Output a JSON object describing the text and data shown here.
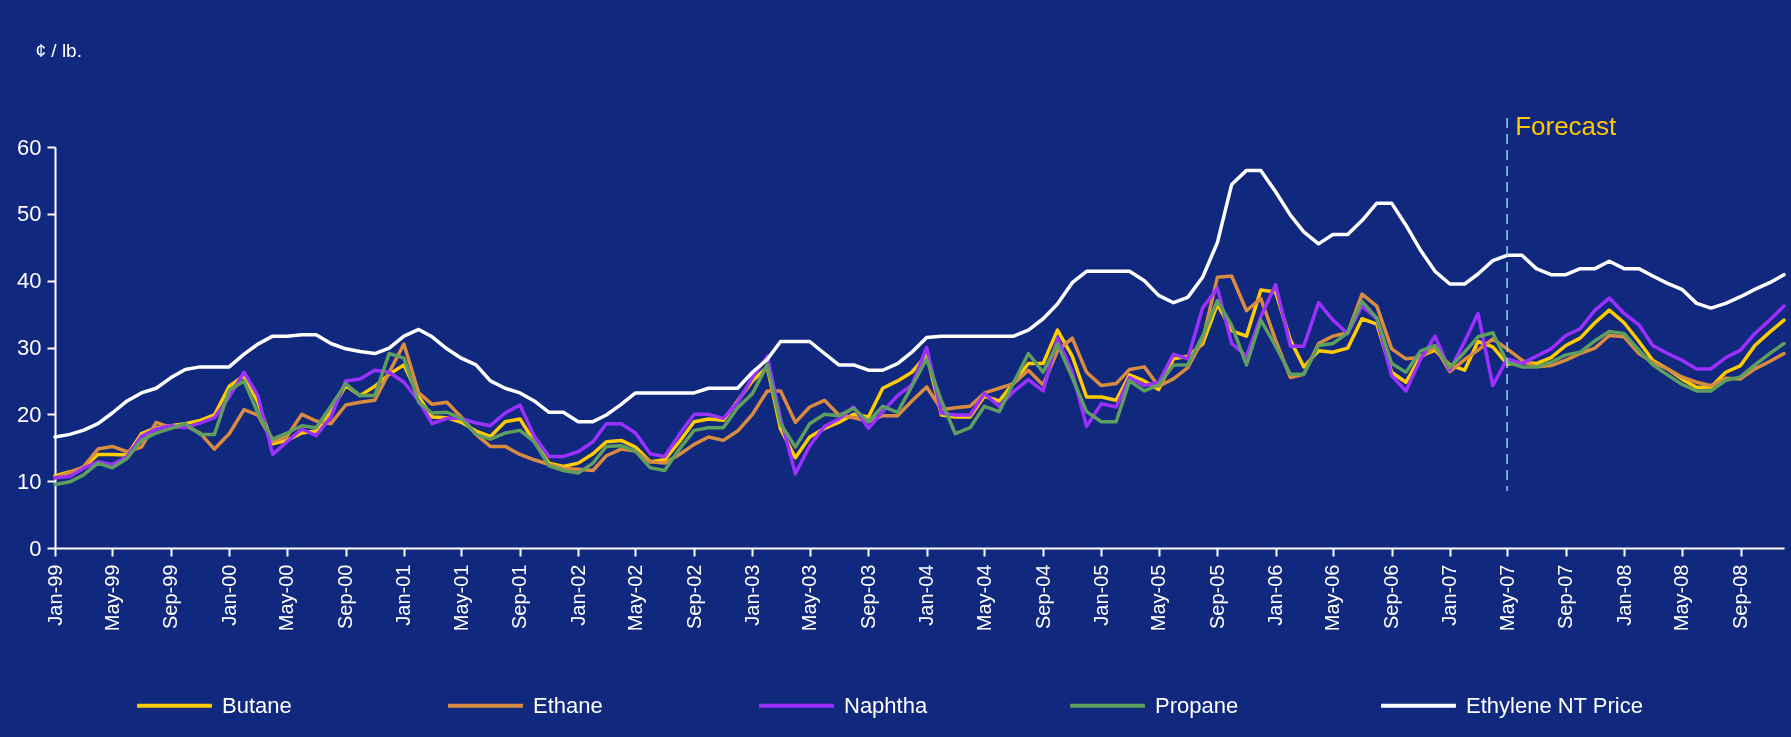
{
  "chart_data": {
    "type": "line",
    "ylabel": "¢ / lb.",
    "x": [
      "1999-01",
      "1999-02",
      "1999-03",
      "1999-04",
      "1999-05",
      "1999-06",
      "1999-07",
      "1999-08",
      "1999-09",
      "1999-10",
      "1999-11",
      "1999-12",
      "2000-01",
      "2000-02",
      "2000-03",
      "2000-04",
      "2000-05",
      "2000-06",
      "2000-07",
      "2000-08",
      "2000-09",
      "2000-10",
      "2000-11",
      "2000-12",
      "2001-01",
      "2001-02",
      "2001-03",
      "2001-04",
      "2001-05",
      "2001-06",
      "2001-07",
      "2001-08",
      "2001-09",
      "2001-10",
      "2001-11",
      "2001-12",
      "2002-01",
      "2002-02",
      "2002-03",
      "2002-04",
      "2002-05",
      "2002-06",
      "2002-07",
      "2002-08",
      "2002-09",
      "2002-10",
      "2002-11",
      "2002-12",
      "2003-01",
      "2003-02",
      "2003-03",
      "2003-04",
      "2003-05",
      "2003-06",
      "2003-07",
      "2003-08",
      "2003-09",
      "2003-10",
      "2003-11",
      "2003-12",
      "2004-01",
      "2004-02",
      "2004-03",
      "2004-04",
      "2004-05",
      "2004-06",
      "2004-07",
      "2004-08",
      "2004-09",
      "2004-10",
      "2004-11",
      "2004-12",
      "2005-01",
      "2005-02",
      "2005-03",
      "2005-04",
      "2005-05",
      "2005-06",
      "2005-07",
      "2005-08",
      "2005-09",
      "2005-10",
      "2005-11",
      "2005-12",
      "2006-01",
      "2006-02",
      "2006-03",
      "2006-04",
      "2006-05",
      "2006-06",
      "2006-07",
      "2006-08",
      "2006-09",
      "2006-10",
      "2006-11",
      "2006-12",
      "2007-01",
      "2007-02",
      "2007-03",
      "2007-04",
      "2007-05",
      "2007-06",
      "2007-07",
      "2007-08",
      "2007-09",
      "2007-10",
      "2007-11",
      "2007-12",
      "2008-01",
      "2008-02",
      "2008-03",
      "2008-04",
      "2008-05",
      "2008-06",
      "2008-07",
      "2008-08",
      "2008-09",
      "2008-10",
      "2008-11",
      "2008-12"
    ],
    "series": [
      {
        "name": "Butane",
        "color": "#ffcc00",
        "values": [
          10.8,
          11.4,
          12.0,
          14.0,
          14.0,
          13.9,
          17.1,
          18.0,
          18.3,
          18.6,
          19.1,
          19.9,
          24.2,
          25.8,
          21.8,
          15.6,
          16.1,
          17.2,
          17.5,
          20.4,
          24.3,
          22.8,
          24.2,
          26.0,
          27.4,
          22.6,
          19.6,
          19.5,
          18.8,
          17.5,
          16.7,
          18.9,
          19.3,
          15.9,
          12.7,
          12.2,
          12.7,
          14.1,
          15.9,
          16.1,
          15.1,
          12.9,
          13.2,
          15.9,
          18.9,
          19.3,
          19.1,
          22.0,
          25.0,
          27.1,
          17.8,
          13.5,
          16.6,
          17.9,
          18.8,
          20.0,
          19.6,
          23.9,
          25.0,
          26.3,
          28.9,
          19.9,
          19.6,
          19.6,
          22.7,
          22.0,
          24.7,
          27.6,
          27.6,
          32.6,
          28.7,
          22.6,
          22.6,
          22.1,
          25.9,
          25.0,
          23.7,
          28.3,
          28.7,
          30.5,
          36.5,
          32.5,
          31.7,
          38.6,
          38.3,
          31.1,
          27.1,
          29.5,
          29.3,
          29.9,
          34.3,
          33.5,
          26.3,
          24.8,
          28.7,
          29.6,
          27.4,
          26.6,
          30.9,
          30.1,
          27.5,
          27.8,
          27.6,
          28.5,
          30.3,
          31.4,
          33.7,
          35.6,
          33.7,
          30.9,
          28.1,
          26.8,
          25.3,
          24.0,
          24.1,
          26.3,
          27.3,
          30.3,
          32.3,
          34.1
        ]
      },
      {
        "name": "Ethane",
        "color": "#d98b40",
        "values": [
          10.5,
          11.3,
          12.1,
          14.8,
          15.2,
          14.4,
          15.1,
          18.8,
          18.0,
          18.3,
          17.2,
          14.8,
          17.1,
          20.7,
          19.9,
          15.9,
          16.7,
          20.0,
          19.0,
          18.6,
          21.4,
          21.8,
          22.1,
          26.3,
          30.5,
          23.2,
          21.5,
          21.8,
          19.6,
          17.0,
          15.2,
          15.2,
          14.0,
          13.2,
          12.5,
          11.9,
          11.8,
          11.6,
          13.8,
          14.8,
          14.5,
          12.9,
          12.7,
          14.0,
          15.5,
          16.6,
          16.1,
          17.5,
          20.0,
          23.5,
          23.5,
          18.8,
          21.1,
          22.1,
          19.9,
          19.5,
          18.9,
          19.8,
          19.8,
          22.0,
          24.1,
          20.7,
          21.0,
          21.2,
          23.2,
          23.9,
          24.6,
          26.6,
          24.4,
          29.5,
          31.4,
          26.3,
          24.3,
          24.6,
          26.7,
          27.1,
          24.2,
          25.3,
          27.0,
          31.1,
          40.5,
          40.7,
          35.5,
          37.3,
          31.1,
          25.5,
          26.0,
          30.6,
          31.7,
          32.2,
          38.0,
          36.2,
          29.8,
          28.3,
          28.5,
          30.1,
          26.4,
          28.2,
          29.6,
          31.3,
          29.8,
          28.1,
          27.1,
          27.3,
          28.1,
          29.1,
          29.9,
          31.8,
          31.6,
          29.1,
          27.8,
          26.8,
          25.6,
          24.8,
          24.3,
          25.4,
          25.3,
          26.8,
          27.9,
          29.1
        ]
      },
      {
        "name": "Naphtha",
        "color": "#9b30ff",
        "values": [
          10.5,
          10.7,
          11.9,
          12.9,
          12.5,
          13.7,
          16.7,
          17.8,
          18.3,
          18.0,
          18.7,
          19.5,
          22.6,
          26.3,
          22.8,
          14.0,
          15.9,
          17.8,
          16.8,
          19.6,
          25.0,
          25.3,
          26.6,
          26.3,
          24.8,
          22.0,
          18.6,
          19.4,
          19.4,
          18.7,
          18.3,
          20.2,
          21.4,
          16.7,
          13.7,
          13.7,
          14.4,
          15.9,
          18.6,
          18.6,
          17.2,
          14.1,
          13.7,
          17.0,
          20.0,
          20.0,
          19.4,
          21.8,
          25.5,
          28.7,
          19.4,
          11.1,
          15.3,
          18.2,
          19.3,
          21.1,
          17.9,
          20.4,
          22.8,
          24.4,
          30.0,
          20.2,
          19.9,
          19.9,
          23.1,
          21.2,
          23.4,
          25.2,
          23.5,
          31.4,
          26.3,
          18.2,
          21.6,
          21.1,
          25.5,
          24.3,
          24.8,
          29.0,
          28.3,
          35.9,
          38.9,
          30.6,
          28.7,
          34.6,
          39.4,
          30.2,
          30.2,
          36.7,
          34.1,
          32.1,
          36.2,
          34.3,
          25.8,
          23.5,
          28.3,
          31.7,
          26.6,
          30.9,
          35.1,
          24.3,
          28.3,
          27.6,
          28.7,
          29.8,
          31.8,
          32.8,
          35.6,
          37.4,
          35.1,
          33.4,
          30.3,
          29.1,
          28.1,
          26.8,
          26.8,
          28.5,
          29.6,
          32.1,
          34.1,
          36.2
        ]
      },
      {
        "name": "Propane",
        "color": "#5e9e5e",
        "values": [
          9.5,
          9.9,
          10.9,
          12.7,
          12.0,
          13.4,
          16.1,
          17.2,
          17.9,
          18.6,
          17.0,
          17.0,
          23.6,
          25.0,
          20.2,
          16.3,
          17.2,
          18.3,
          18.0,
          21.2,
          24.6,
          22.8,
          22.8,
          29.1,
          28.4,
          21.8,
          20.2,
          20.3,
          19.4,
          17.0,
          16.3,
          17.2,
          17.6,
          15.9,
          12.3,
          11.6,
          11.2,
          12.7,
          15.2,
          15.3,
          14.5,
          12.0,
          11.6,
          14.8,
          17.6,
          18.0,
          18.0,
          21.0,
          23.1,
          27.4,
          18.6,
          15.1,
          18.6,
          20.0,
          19.8,
          20.9,
          18.9,
          21.2,
          20.3,
          24.2,
          28.3,
          22.0,
          17.1,
          18.0,
          21.2,
          20.4,
          24.7,
          29.1,
          26.3,
          30.5,
          25.5,
          20.4,
          18.9,
          18.9,
          25.0,
          23.5,
          24.4,
          27.4,
          27.4,
          31.7,
          37.0,
          33.3,
          27.4,
          34.1,
          30.2,
          26.0,
          26.0,
          30.3,
          30.6,
          32.2,
          36.9,
          34.4,
          27.6,
          26.3,
          29.5,
          30.3,
          27.0,
          29.3,
          31.6,
          32.2,
          27.8,
          27.1,
          27.1,
          27.8,
          28.9,
          29.3,
          31.0,
          32.4,
          32.1,
          29.6,
          27.4,
          25.9,
          24.5,
          23.5,
          23.5,
          25.1,
          25.6,
          27.4,
          29.1,
          30.6
        ]
      },
      {
        "name": "Ethylene NT Price",
        "color": "#ffffff",
        "values": [
          16.6,
          17.0,
          17.6,
          18.6,
          20.2,
          22.0,
          23.2,
          23.9,
          25.5,
          26.7,
          27.1,
          27.1,
          27.1,
          29.0,
          30.5,
          31.7,
          31.7,
          31.9,
          31.9,
          30.6,
          29.8,
          29.4,
          29.1,
          29.9,
          31.7,
          32.7,
          31.6,
          29.8,
          28.4,
          27.4,
          25.0,
          23.9,
          23.2,
          22.0,
          20.3,
          20.3,
          18.9,
          18.9,
          19.9,
          21.5,
          23.2,
          23.2,
          23.2,
          23.2,
          23.2,
          23.9,
          23.9,
          23.9,
          26.3,
          28.2,
          30.9,
          30.9,
          30.9,
          29.1,
          27.4,
          27.4,
          26.6,
          26.6,
          27.6,
          29.3,
          31.5,
          31.7,
          31.7,
          31.7,
          31.7,
          31.7,
          31.7,
          32.6,
          34.3,
          36.5,
          39.7,
          41.4,
          41.4,
          41.4,
          41.4,
          40.0,
          37.8,
          36.7,
          37.5,
          40.5,
          45.7,
          54.4,
          56.5,
          56.5,
          53.3,
          49.8,
          47.3,
          45.5,
          46.9,
          46.9,
          49.0,
          51.6,
          51.6,
          48.3,
          44.5,
          41.4,
          39.5,
          39.5,
          41.0,
          43.0,
          43.8,
          43.8,
          41.8,
          40.9,
          40.9,
          41.8,
          41.8,
          42.9,
          41.8,
          41.8,
          40.7,
          39.6,
          38.7,
          36.6,
          35.9,
          36.6,
          37.6,
          38.7,
          39.7,
          40.9
        ]
      }
    ],
    "xlim": [
      "1999-01",
      "2008-12"
    ],
    "xticks": [
      {
        "value": "1999-01",
        "label": "Jan-99"
      },
      {
        "value": "1999-05",
        "label": "May-99"
      },
      {
        "value": "1999-09",
        "label": "Sep-99"
      },
      {
        "value": "2000-01",
        "label": "Jan-00"
      },
      {
        "value": "2000-05",
        "label": "May-00"
      },
      {
        "value": "2000-09",
        "label": "Sep-00"
      },
      {
        "value": "2001-01",
        "label": "Jan-01"
      },
      {
        "value": "2001-05",
        "label": "May-01"
      },
      {
        "value": "2001-09",
        "label": "Sep-01"
      },
      {
        "value": "2002-01",
        "label": "Jan-02"
      },
      {
        "value": "2002-05",
        "label": "May-02"
      },
      {
        "value": "2002-09",
        "label": "Sep-02"
      },
      {
        "value": "2003-01",
        "label": "Jan-03"
      },
      {
        "value": "2003-05",
        "label": "May-03"
      },
      {
        "value": "2003-09",
        "label": "Sep-03"
      },
      {
        "value": "2004-01",
        "label": "Jan-04"
      },
      {
        "value": "2004-05",
        "label": "May-04"
      },
      {
        "value": "2004-09",
        "label": "Sep-04"
      },
      {
        "value": "2005-01",
        "label": "Jan-05"
      },
      {
        "value": "2005-05",
        "label": "May-05"
      },
      {
        "value": "2005-09",
        "label": "Sep-05"
      },
      {
        "value": "2006-01",
        "label": "Jan-06"
      },
      {
        "value": "2006-05",
        "label": "May-06"
      },
      {
        "value": "2006-09",
        "label": "Sep-06"
      },
      {
        "value": "2007-01",
        "label": "Jan-07"
      },
      {
        "value": "2007-05",
        "label": "May-07"
      },
      {
        "value": "2007-09",
        "label": "Sep-07"
      },
      {
        "value": "2008-01",
        "label": "Jan-08"
      },
      {
        "value": "2008-05",
        "label": "May-08"
      },
      {
        "value": "2008-09",
        "label": "Sep-08"
      }
    ],
    "ylim": [
      0,
      60
    ],
    "yticks": [
      0,
      10,
      20,
      30,
      40,
      50,
      60
    ],
    "ref_lines": [
      {
        "axis": "x",
        "value": "2007-05",
        "label": "Forecast",
        "color": "#8fd0f5",
        "line_style": "dashed"
      }
    ],
    "legend": "bottom",
    "grid": false,
    "marker": "none",
    "line_style": "solid"
  }
}
